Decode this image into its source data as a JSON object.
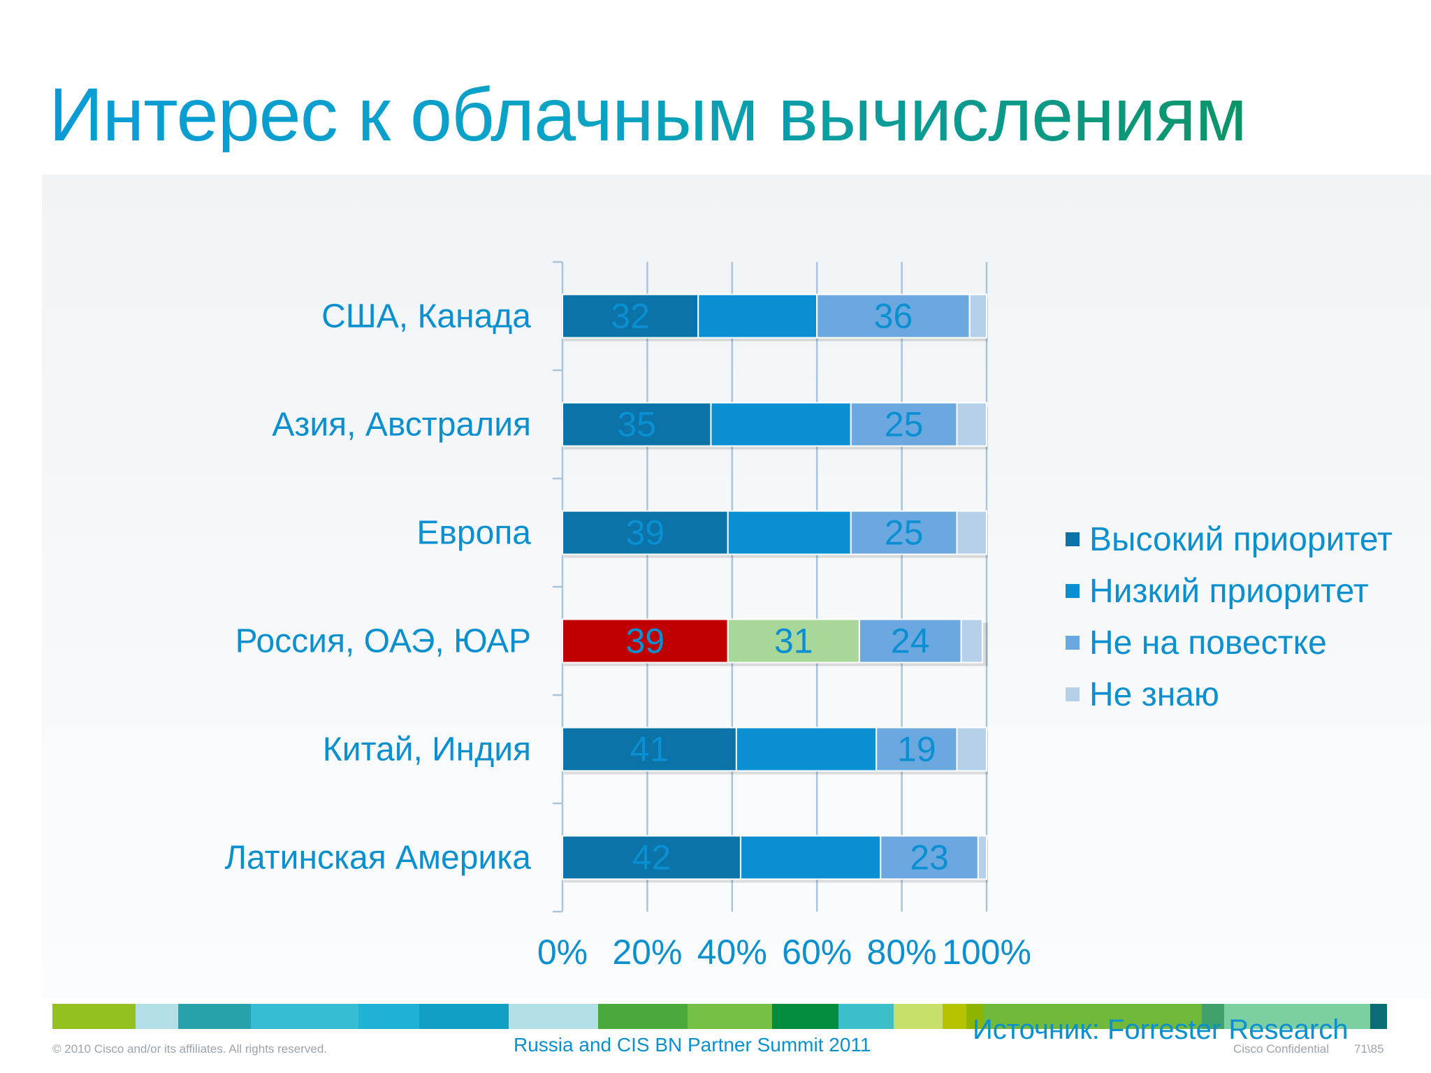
{
  "title": "Интерес к облачным вычислениям",
  "chart_data": {
    "type": "bar",
    "orientation": "horizontal",
    "stacked": true,
    "categories": [
      "США, Канада",
      "Азия, Австралия",
      "Европа",
      "Россия, ОАЭ, ЮАР",
      "Китай, Индия",
      "Латинская Америка"
    ],
    "series": [
      {
        "name": "Высокий приоритет",
        "color": "#0b73a8",
        "values": [
          32,
          35,
          39,
          39,
          41,
          42
        ]
      },
      {
        "name": "Низкий приоритет",
        "color": "#0a8fd2",
        "values": [
          28,
          33,
          29,
          31,
          33,
          33
        ]
      },
      {
        "name": "Не на повестке",
        "color": "#6aa8df",
        "values": [
          36,
          25,
          25,
          24,
          19,
          23
        ]
      },
      {
        "name": "Не знаю",
        "color": "#b6d0ea",
        "values": [
          4,
          7,
          7,
          5,
          7,
          2
        ]
      }
    ],
    "highlight": {
      "category": "Россия, ОАЭ, ЮАР",
      "colors": [
        "#c00000",
        "#a9d79a",
        "#6aa8df",
        "#b6d0ea"
      ]
    },
    "data_labels": [
      [
        "32",
        "28",
        "36",
        ""
      ],
      [
        "35",
        "33",
        "25",
        ""
      ],
      [
        "39",
        "29",
        "25",
        ""
      ],
      [
        "39",
        "31",
        "24",
        ""
      ],
      [
        "41",
        "33",
        "19",
        ""
      ],
      [
        "42",
        "33",
        "23",
        ""
      ]
    ],
    "x_ticks": [
      "0%",
      "20%",
      "40%",
      "60%",
      "80%",
      "100%"
    ],
    "xlim": [
      0,
      100
    ],
    "grid": true,
    "legend_position": "right"
  },
  "footer": {
    "copyright": "© 2010 Cisco and/or its affiliates. All rights reserved.",
    "event": "Russia and CIS BN Partner Summit 2011",
    "source": "Источник: Forrester Research",
    "confidential": "Cisco Confidential",
    "page": "71\\85",
    "band_colors": [
      "#94c11f",
      "#b2dfe5",
      "#27a2ab",
      "#35bbd2",
      "#20b2d4",
      "#11a0c4",
      "#b2dfe5",
      "#4aa93b",
      "#74c044",
      "#028c3c",
      "#3dbfca",
      "#c6e06a",
      "#b6c400",
      "#8fb400",
      "#70b93b",
      "#40a16b",
      "#7ccfa0",
      "#0a6c74"
    ]
  }
}
